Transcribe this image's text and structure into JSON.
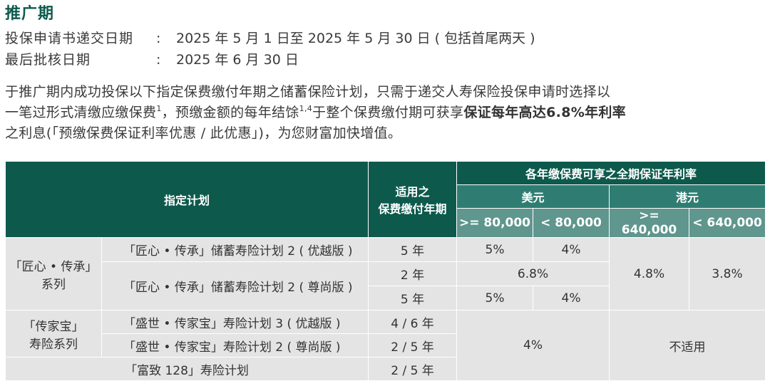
{
  "title": "推广期",
  "info": [
    {
      "label": "投保申请书递交日期",
      "sep": ":",
      "value": "2025 年 5 月 1 日至 2025 年 5 月 30 日 ( 包括首尾两天 )"
    },
    {
      "label": "最后批核日期",
      "sep": ":",
      "value": "2025 年 6 月 30 日"
    }
  ],
  "paragraph": {
    "line1": "于推广期内成功投保以下指定保费缴付年期之储蓄保险计划，只需于递交人寿保险投保申请时选择以",
    "line2_a": "一笔过形式清缴应缴保费",
    "line2_sup1": "1",
    "line2_b": "，预缴金额的每年结馀",
    "line2_sup2": "1,4",
    "line2_c": "于整个保费缴付期可获享",
    "line2_bold": "保证每年高达6.8%年利率",
    "line3": "之利息(「预缴保费保证利率优惠 / 此优惠」)，为您财富加快增值。"
  },
  "table": {
    "headers": {
      "plan": "指定计划",
      "term_line1": "适用之",
      "term_line2": "保费缴付年期",
      "rate_group": "各年缴保费可享之全期保证年利率",
      "usd": "美元",
      "hkd": "港元",
      "usd_high": ">= 80,000",
      "usd_low": "< 80,000",
      "hkd_high": ">= 640,000",
      "hkd_low": "< 640,000"
    },
    "series1": {
      "name_line1": "「匠心 • 传承」",
      "name_line2": "系列"
    },
    "series2": {
      "name_line1": "「传家宝」",
      "name_line2": "寿险系列"
    },
    "rows": {
      "r1": {
        "plan": "「匠心 • 传承」储蓄寿险计划 2 ( 优越版 )",
        "term": "5 年",
        "usd_high": "5%",
        "usd_low": "4%"
      },
      "r2": {
        "plan": "「匠心 • 传承」储蓄寿险计划 2 ( 尊尚版 )",
        "term": "2 年",
        "usd_all": "6.8%"
      },
      "r3": {
        "term": "5 年",
        "usd_high": "5%",
        "usd_low": "4%"
      },
      "hkd_series1_high": "4.8%",
      "hkd_series1_low": "3.8%",
      "r4": {
        "plan": "「盛世 • 传家宝」寿险计划 3 ( 优越版 )",
        "term": "4 / 6 年"
      },
      "r5": {
        "plan": "「盛世 • 传家宝」寿险计划 2 ( 尊尚版 )",
        "term": "2 / 5 年"
      },
      "r6": {
        "plan": "「富致 128」寿险计划",
        "term": "2 / 5 年"
      },
      "usd_rest": "4%",
      "hkd_rest": "不适用"
    }
  }
}
